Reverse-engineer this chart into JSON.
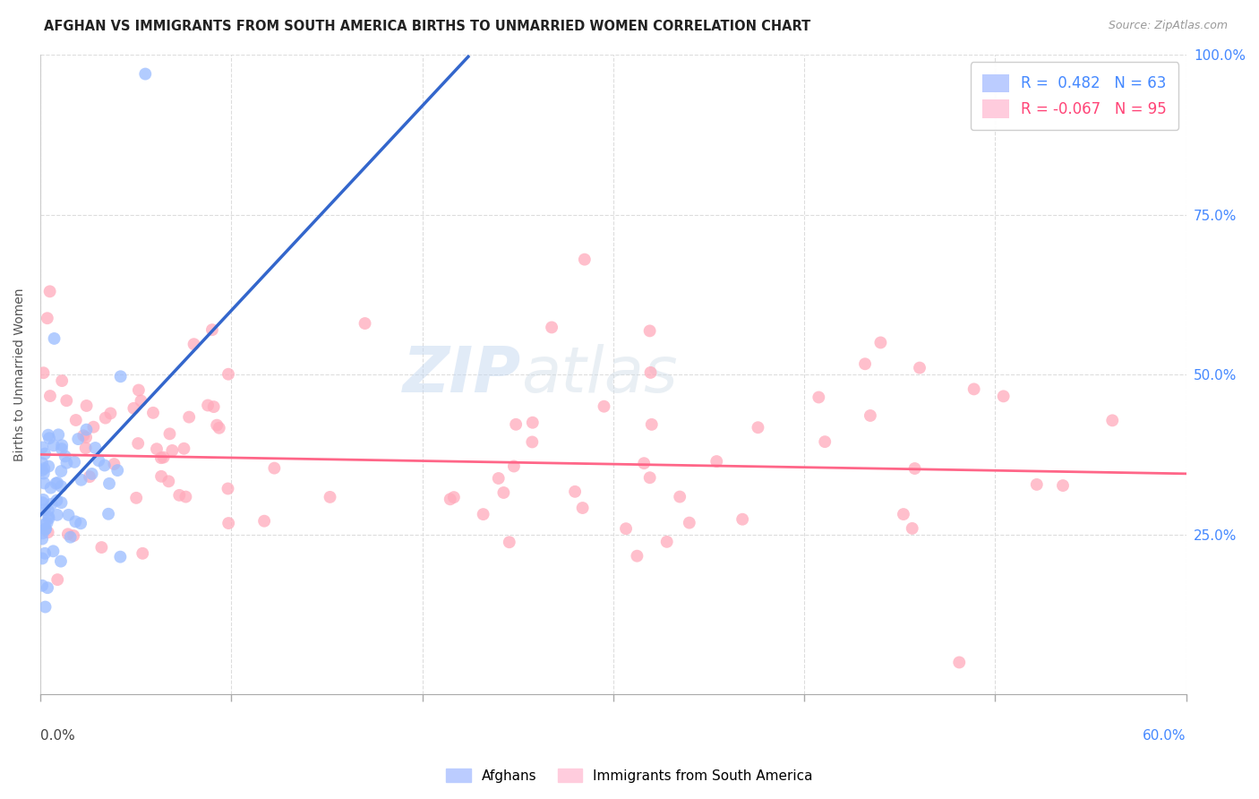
{
  "title": "AFGHAN VS IMMIGRANTS FROM SOUTH AMERICA BIRTHS TO UNMARRIED WOMEN CORRELATION CHART",
  "source": "Source: ZipAtlas.com",
  "ylabel": "Births to Unmarried Women",
  "watermark_zip": "ZIP",
  "watermark_atlas": "atlas",
  "blue_color": "#99bbff",
  "pink_color": "#ffaabb",
  "blue_line_color": "#3366cc",
  "pink_line_color": "#ff6688",
  "dashed_line_color": "#aaccff",
  "background_color": "#ffffff",
  "grid_color": "#dddddd",
  "grid_style": "--",
  "R_blue": 0.482,
  "N_blue": 63,
  "R_pink": -0.067,
  "N_pink": 95,
  "xlim": [
    0.0,
    0.6
  ],
  "ylim": [
    0.0,
    1.0
  ],
  "blue_regression_slope": 3.2,
  "blue_regression_intercept": 0.28,
  "pink_regression_slope": -0.05,
  "pink_regression_intercept": 0.375,
  "title_fontsize": 10.5,
  "source_fontsize": 9,
  "axis_label_fontsize": 10,
  "legend_fontsize": 12,
  "tick_fontsize": 10
}
